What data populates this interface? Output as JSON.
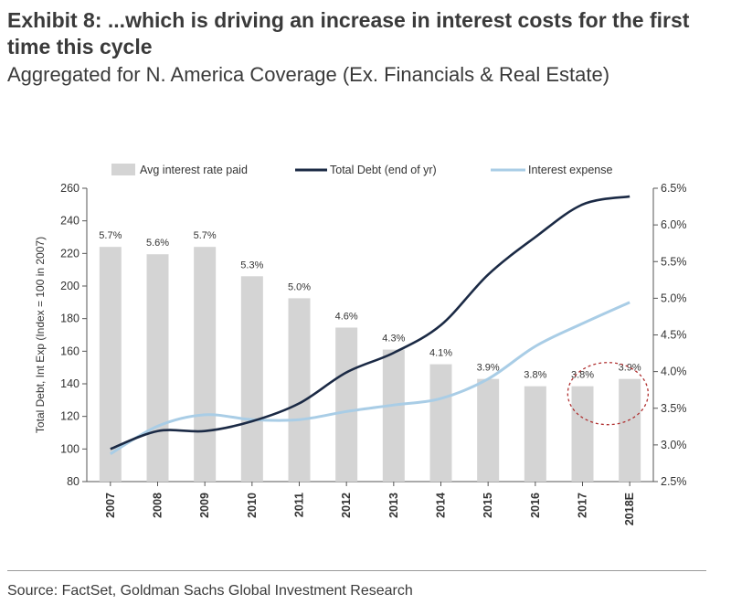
{
  "title": "Exhibit 8: ...which is driving an increase in interest costs for the first time this cycle",
  "subtitle": "Aggregated for N. America Coverage (Ex. Financials & Real Estate)",
  "source": "Source: FactSet, Goldman Sachs Global Investment Research",
  "colors": {
    "bar": "#d4d4d4",
    "debt_line": "#1b2a45",
    "interest_line": "#a9cde6",
    "annotation": "#b03030",
    "axis": "#555555"
  },
  "chart_data": {
    "type": "bar+line",
    "categories": [
      "2007",
      "2008",
      "2009",
      "2010",
      "2011",
      "2012",
      "2013",
      "2014",
      "2015",
      "2016",
      "2017",
      "2018E"
    ],
    "ylabel_left": "Total Debt, Int Exp (Index = 100 in 2007)",
    "ylim_left": [
      80,
      260
    ],
    "yticks_left": [
      "80",
      "100",
      "120",
      "140",
      "160",
      "180",
      "200",
      "220",
      "240",
      "260"
    ],
    "ylim_right": [
      2.5,
      6.5
    ],
    "yticks_right": [
      "2.5%",
      "3.0%",
      "3.5%",
      "4.0%",
      "4.5%",
      "5.0%",
      "5.5%",
      "6.0%",
      "6.5%"
    ],
    "legend": {
      "placement": "top",
      "entries": [
        "Avg interest rate paid",
        "Total Debt (end of yr)",
        "Interest expense"
      ]
    },
    "series": [
      {
        "name": "Avg interest rate paid",
        "type": "bar",
        "axis": "right",
        "values": [
          5.7,
          5.6,
          5.7,
          5.3,
          5.0,
          4.6,
          4.3,
          4.1,
          3.9,
          3.8,
          3.8,
          3.9
        ],
        "labels": [
          "5.7%",
          "5.6%",
          "5.7%",
          "5.3%",
          "5.0%",
          "4.6%",
          "4.3%",
          "4.1%",
          "3.9%",
          "3.8%",
          "3.8%",
          "3.9%"
        ]
      },
      {
        "name": "Total Debt (end of yr)",
        "type": "line",
        "axis": "left",
        "values": [
          100,
          111,
          111,
          117,
          128,
          147,
          159,
          176,
          207,
          230,
          250,
          255
        ]
      },
      {
        "name": "Interest expense",
        "type": "line",
        "axis": "left",
        "values": [
          97,
          114,
          121,
          118,
          118,
          123,
          127,
          131,
          143,
          163,
          177,
          190
        ]
      }
    ],
    "annotation": {
      "type": "dashed-ellipse",
      "covers": [
        "2017",
        "2018E"
      ]
    }
  }
}
